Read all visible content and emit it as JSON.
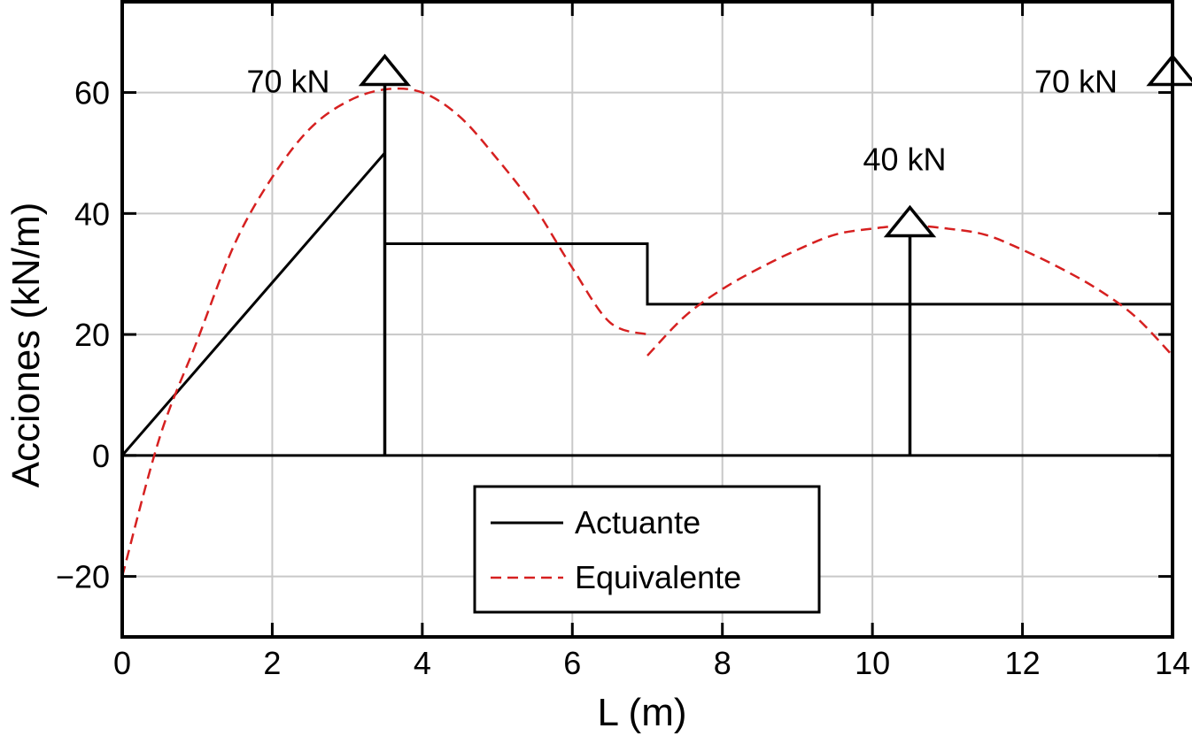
{
  "chart_data": {
    "type": "line",
    "xlabel": "L (m)",
    "ylabel": "Acciones (kN/m)",
    "xlim": [
      0,
      14
    ],
    "ylim": [
      -30,
      75
    ],
    "x_ticks": [
      0,
      2,
      4,
      6,
      8,
      10,
      12,
      14
    ],
    "y_ticks": [
      -20,
      0,
      20,
      40,
      60
    ],
    "x_tick_labels": [
      "0",
      "2",
      "4",
      "6",
      "8",
      "10",
      "12",
      "14"
    ],
    "y_tick_labels": [
      "−20",
      "0",
      "20",
      "40",
      "60"
    ],
    "grid": true,
    "legend_position": "bottom-center",
    "series": [
      {
        "name": "Actuante",
        "style": "solid",
        "color": "#000000",
        "x": [
          0,
          3.5,
          3.5,
          7,
          7,
          14,
          14
        ],
        "y": [
          0,
          50,
          35,
          35,
          25,
          25,
          0
        ]
      },
      {
        "name": "Equivalente",
        "style": "dashed",
        "color": "#d62020",
        "segments": [
          {
            "x": [
              0,
              0.5,
              1,
              1.5,
              2,
              2.5,
              3,
              3.5,
              4,
              4.5,
              5,
              5.5,
              6,
              6.5,
              7
            ],
            "y": [
              -20,
              3,
              19,
              35,
              46,
              54,
              58.5,
              60.5,
              60,
              56,
              49,
              41,
              31,
              22,
              20
            ]
          },
          {
            "x": [
              7,
              7.5,
              8,
              8.5,
              9,
              9.5,
              10,
              10.5,
              11,
              11.5,
              12,
              12.5,
              13,
              13.5,
              14
            ],
            "y": [
              16.5,
              23,
              27.5,
              31,
              34,
              36.5,
              37.5,
              38,
              37.5,
              36.5,
              34,
              31,
              27.5,
              23,
              16.5
            ]
          }
        ]
      }
    ],
    "point_loads": [
      {
        "x": 3.5,
        "label": "70 kN",
        "top": 66
      },
      {
        "x": 10.5,
        "label": "40 kN",
        "top": 41
      },
      {
        "x": 14,
        "label": "70 kN",
        "top": 66
      }
    ]
  },
  "legend": {
    "actuante_label": "Actuante",
    "equivalente_label": "Equivalente"
  }
}
